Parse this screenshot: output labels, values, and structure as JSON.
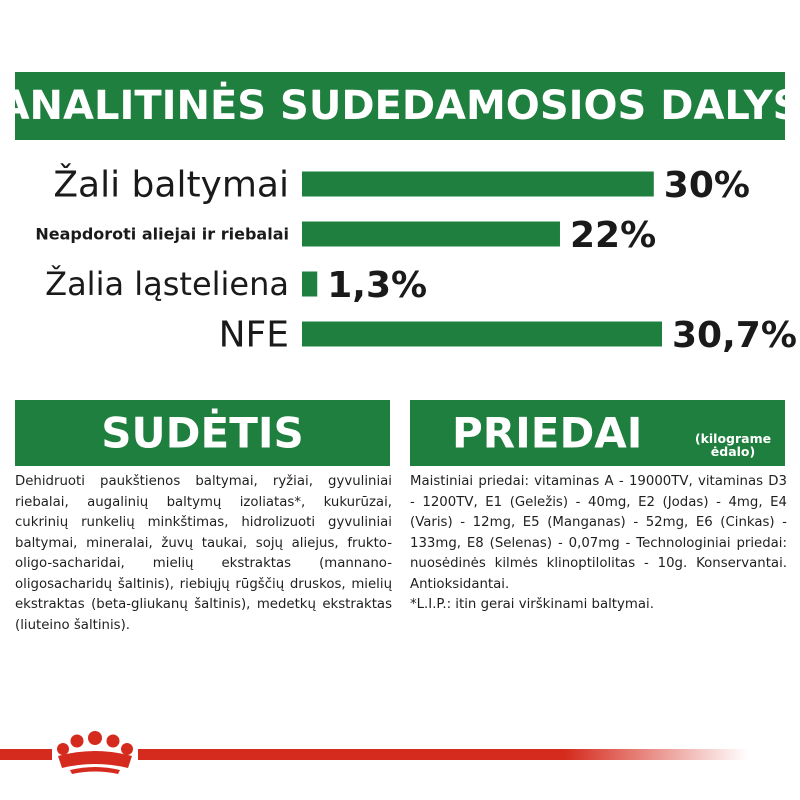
{
  "banner": {
    "title": "ANALITINĖS SUDEDAMOSIOS DALYS"
  },
  "chart_data": {
    "type": "bar",
    "orientation": "horizontal",
    "categories": [
      "Žali baltymai",
      "Neapdoroti aliejai ir riebalai",
      "Žalia ląsteliena",
      "NFE"
    ],
    "values": [
      30,
      22,
      1.3,
      30.7
    ],
    "value_labels": [
      "30%",
      "22%",
      "1,3%",
      "30,7%"
    ],
    "unit": "%",
    "bar_color": "#1e7f3e",
    "xlim": [
      0,
      30.7
    ]
  },
  "sudetis": {
    "title": "SUDĖTIS",
    "text": "Dehidruoti paukštienos baltymai, ryžiai, gyvuliniai riebalai, augalinių baltymų izoliatas*, kukurūzai, cukrinių runkelių minkštimas, hidrolizuoti gyvuliniai baltymai, mineralai, žuvų taukai, sojų aliejus, frukto-oligo-sacharidai, mielių ekstraktas (mannano-oligosacharidų šaltinis), riebiųjų rūgščių druskos, mielių ekstraktas (beta-gliukanų šaltinis), medetkų ekstraktas (liuteino šaltinis)."
  },
  "priedai": {
    "title": "PRIEDAI",
    "unit": "(kilograme ėdalo)",
    "text": "Maistiniai priedai: vitaminas A - 19000TV, vitaminas D3 - 1200TV, E1 (Geležis) - 40mg, E2 (Jodas) - 4mg, E4 (Varis) - 12mg, E5 (Manganas) - 52mg, E6 (Cinkas) - 133mg, E8 (Selenas) - 0,07mg - Technologiniai priedai: nuosėdinės kilmės klinoptilolitas - 10g. Konservantai. Antioksidantai.",
    "note": "*L.I.P.: itin gerai virškinami baltymai."
  },
  "footer": {
    "line_color": "#d52b1e",
    "logo": "royal-canin-crown-logo"
  }
}
